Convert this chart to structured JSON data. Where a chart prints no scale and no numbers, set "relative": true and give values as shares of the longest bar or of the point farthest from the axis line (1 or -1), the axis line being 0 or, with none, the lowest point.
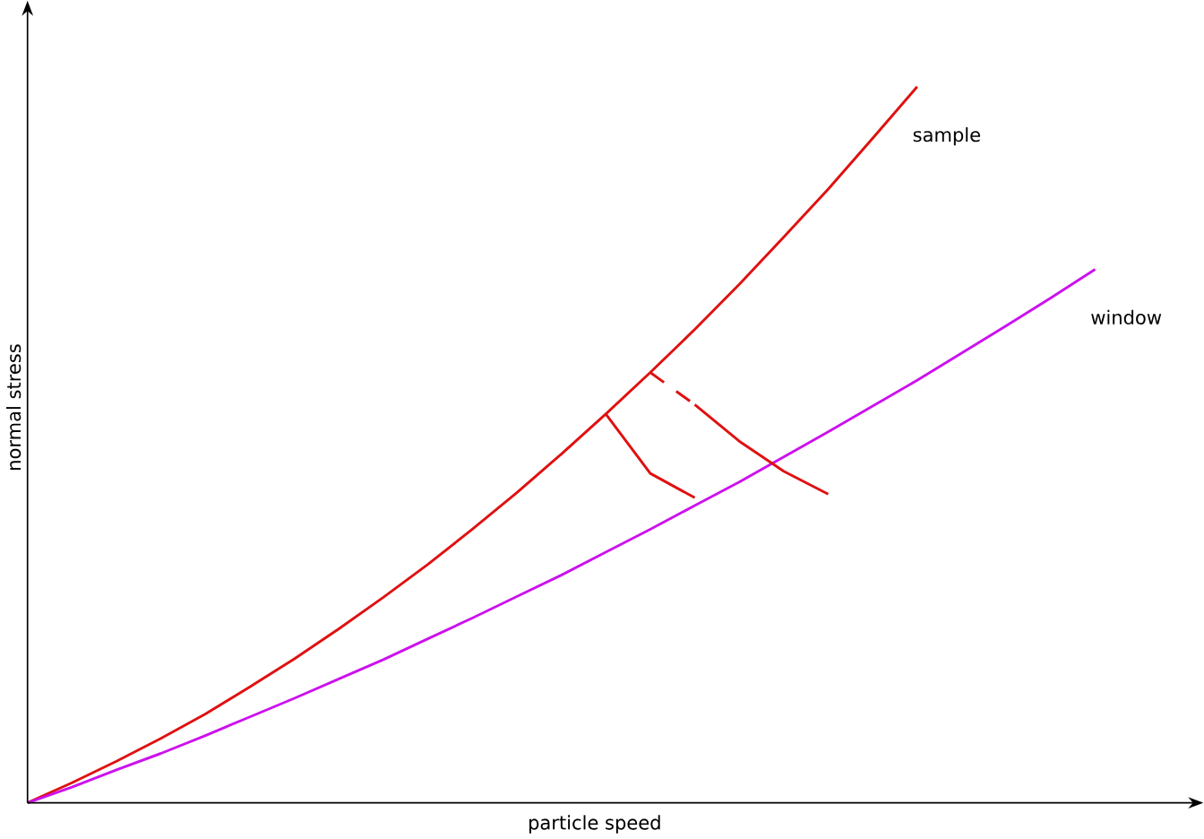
{
  "chart_data": {
    "type": "line",
    "relative": true,
    "xlabel": "particle speed",
    "ylabel": "normal stress",
    "categories": [
      null,
      null,
      null,
      null,
      null,
      null,
      null,
      null,
      null,
      null,
      null,
      null,
      null,
      null,
      null,
      null,
      null,
      null,
      null,
      null,
      null,
      null,
      null,
      null,
      null
    ],
    "series": [
      {
        "name": "sample",
        "color": "#e01010",
        "values": [
          0,
          0.028,
          0.058,
          0.09,
          0.124,
          0.162,
          0.201,
          0.243,
          0.287,
          0.333,
          0.382,
          0.433,
          0.487,
          0.543,
          0.601,
          0.661,
          0.724,
          0.79,
          0.857,
          0.928,
          1,
          null,
          null,
          null,
          null
        ]
      },
      {
        "name": "window",
        "color": "#cc11ee",
        "values": [
          0,
          0.022,
          0.046,
          0.069,
          0.094,
          0.12,
          0.146,
          0.173,
          0.2,
          0.229,
          0.258,
          0.288,
          0.318,
          0.35,
          0.382,
          0.415,
          0.448,
          0.483,
          0.518,
          0.554,
          0.59,
          0.628,
          0.666,
          0.705,
          0.745
        ]
      },
      {
        "color": "#e01010",
        "values": [
          null,
          null,
          null,
          null,
          null,
          null,
          null,
          null,
          null,
          null,
          null,
          null,
          null,
          0.543,
          0.46,
          0.426,
          null,
          null,
          null,
          null,
          null,
          null,
          null,
          null,
          null
        ]
      },
      {
        "color": "#e01010",
        "line_style": "dashed",
        "values": [
          null,
          null,
          null,
          null,
          null,
          null,
          null,
          null,
          null,
          null,
          null,
          null,
          null,
          null,
          0.601,
          0.556,
          null,
          null,
          null,
          null,
          null,
          null,
          null,
          null,
          null
        ]
      },
      {
        "color": "#e01010",
        "values": [
          null,
          null,
          null,
          null,
          null,
          null,
          null,
          null,
          null,
          null,
          null,
          null,
          null,
          null,
          null,
          0.556,
          0.505,
          0.463,
          0.431,
          null,
          null,
          null,
          null,
          null,
          null
        ]
      }
    ]
  }
}
